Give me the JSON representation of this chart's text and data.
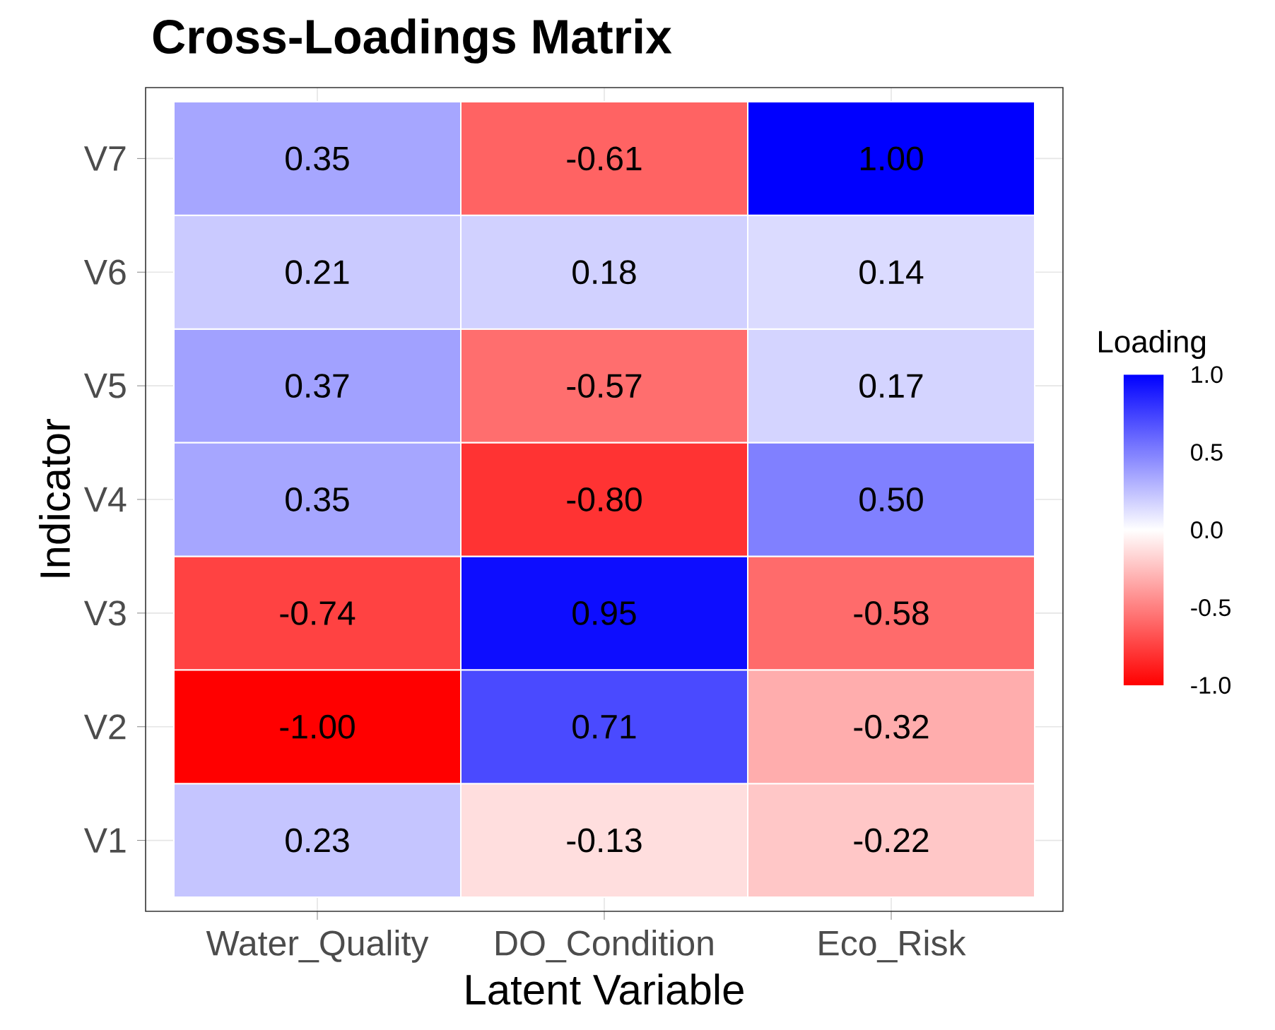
{
  "chart_data": {
    "type": "heatmap",
    "title": "Cross-Loadings Matrix",
    "xlabel": "Latent Variable",
    "ylabel": "Indicator",
    "clabel": "Loading",
    "categories": [
      "Water_Quality",
      "DO_Condition",
      "Eco_Risk"
    ],
    "y_categories": [
      "V7",
      "V6",
      "V5",
      "V4",
      "V3",
      "V2",
      "V1"
    ],
    "cells": [
      [
        0.35,
        -0.61,
        1.0
      ],
      [
        0.21,
        0.18,
        0.14
      ],
      [
        0.37,
        -0.57,
        0.17
      ],
      [
        0.35,
        -0.8,
        0.5
      ],
      [
        -0.74,
        0.95,
        -0.58
      ],
      [
        -1.0,
        0.71,
        -0.32
      ],
      [
        0.23,
        -0.13,
        -0.22
      ]
    ],
    "cell_labels": [
      [
        "0.35",
        "-0.61",
        "1.00"
      ],
      [
        "0.21",
        "0.18",
        "0.14"
      ],
      [
        "0.37",
        "-0.57",
        "0.17"
      ],
      [
        "0.35",
        "-0.80",
        "0.50"
      ],
      [
        "-0.74",
        "0.95",
        "-0.58"
      ],
      [
        "-1.00",
        "0.71",
        "-0.32"
      ],
      [
        "0.23",
        "-0.13",
        "-0.22"
      ]
    ],
    "clim": [
      -1,
      1
    ],
    "cticks": [
      {
        "value": -1,
        "label": "-1.0"
      },
      {
        "value": -0.5,
        "label": "-0.5"
      },
      {
        "value": 0,
        "label": "0.0"
      },
      {
        "value": 0.5,
        "label": "0.5"
      },
      {
        "value": 1,
        "label": "1.0"
      }
    ],
    "grid": true
  }
}
